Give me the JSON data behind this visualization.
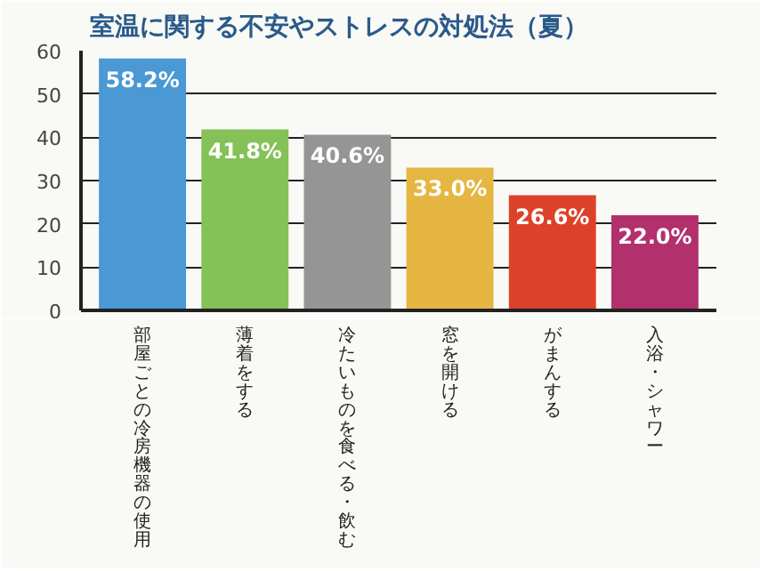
{
  "chart_data": {
    "type": "bar",
    "title": "室温に関する不安やストレスの対処法（夏）",
    "categories": [
      "部屋ごとの冷房機器の使用",
      "薄着をする",
      "冷たいものを食べる・飲む",
      "窓を開ける",
      "がまんする",
      "入浴・シャワー"
    ],
    "values": [
      58.2,
      41.8,
      40.6,
      33.0,
      26.6,
      22.0
    ],
    "colors": [
      "#4a98d4",
      "#84c156",
      "#959595",
      "#e6b643",
      "#dc4229",
      "#b2306c"
    ],
    "value_labels": [
      "58.2%",
      "41.8%",
      "40.6%",
      "33.0%",
      "26.6%",
      "22.0%"
    ],
    "ylim": [
      0,
      60
    ],
    "yticks": [
      0,
      10,
      20,
      30,
      40,
      50,
      60
    ],
    "grid": "y"
  }
}
